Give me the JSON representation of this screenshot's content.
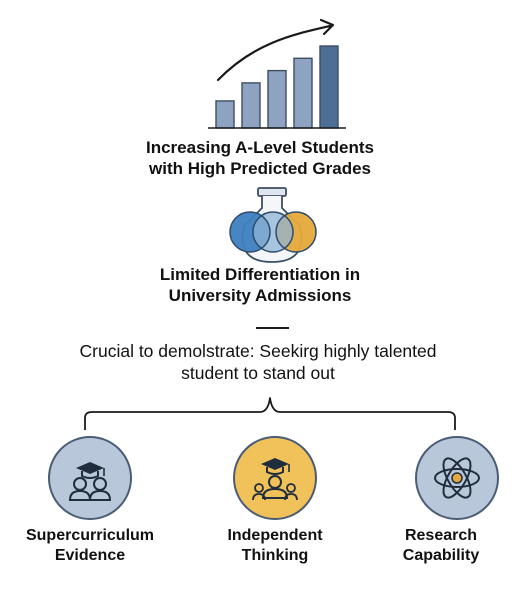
{
  "top_section": {
    "title_line1": "Increasing A-Level Students",
    "title_line2": "with High Predicted Grades",
    "bar_chart_icon": "rising-bar-chart-icon",
    "bar_color": "#8ea3c2",
    "bar_color_dark": "#4e6f95",
    "relative_bar_heights": [
      0.33,
      0.55,
      0.7,
      0.85,
      1.0
    ]
  },
  "middle_section": {
    "title_line1": "Limited Differentiation in",
    "title_line2": "University Admissions",
    "icon": "venn-flask-icon",
    "venn_colors": [
      "#3e7fc0",
      "#8fb4d6",
      "#e6a93b"
    ]
  },
  "statement": {
    "line1": "Crucial to demolstrate: Seekirg highly talented",
    "line2": "student to stand out"
  },
  "pillars": [
    {
      "icon": "graduation-students-icon",
      "line1": "Supercurriculum",
      "line2": "Evidence",
      "circle_color": "#b9c7da"
    },
    {
      "icon": "graduation-thinker-icon",
      "line1": "Independent",
      "line2": "Thinking",
      "circle_color": "#f1c15a"
    },
    {
      "icon": "atom-icon",
      "line1": "Research",
      "line2": "Capability",
      "circle_color": "#b9c7da"
    }
  ]
}
